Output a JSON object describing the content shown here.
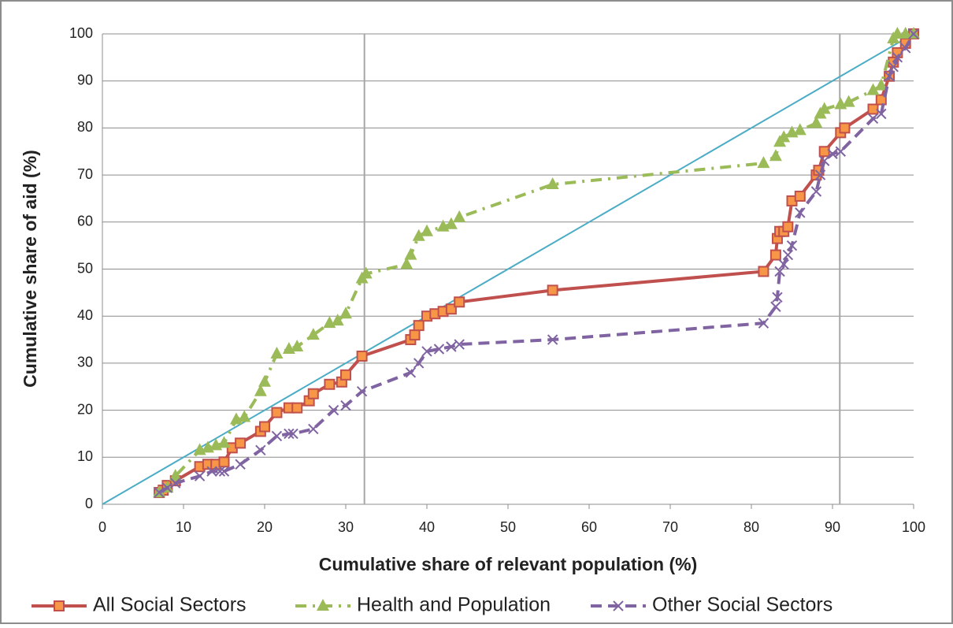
{
  "chart_data": {
    "type": "scatter-line",
    "xlabel": "Cumulative share of relevant population (%)",
    "ylabel": "Cumulative share of aid (%)",
    "xlim": [
      0,
      100
    ],
    "ylim": [
      0,
      100
    ],
    "xticks": [
      0,
      10,
      20,
      30,
      40,
      50,
      60,
      70,
      80,
      90,
      100
    ],
    "yticks": [
      0,
      10,
      20,
      30,
      40,
      50,
      60,
      70,
      80,
      90,
      100
    ],
    "grid": true,
    "legend": "bottom",
    "reference_x": [
      32.3,
      90.9
    ],
    "diagonal": {
      "color": "#4bacc6",
      "x": [
        0,
        100
      ],
      "values": [
        0,
        100
      ]
    },
    "series": [
      {
        "name": "All Social Sectors",
        "color": "#c0504d",
        "marker": "square",
        "dash": "solid",
        "x": [
          7,
          7.5,
          8,
          9,
          12,
          13,
          14,
          15,
          16,
          17,
          19.5,
          20,
          21.5,
          23,
          24,
          25.5,
          26,
          28,
          29.5,
          30,
          32,
          38,
          38.5,
          39,
          40,
          41,
          42,
          43,
          44,
          55.5,
          81.5,
          83,
          83.2,
          83.5,
          84,
          84.5,
          85,
          86,
          88,
          88.3,
          89,
          91,
          91.5,
          95,
          96,
          97,
          97.5,
          98,
          99,
          100
        ],
        "values": [
          2.5,
          3,
          4,
          5,
          8,
          8.5,
          8.5,
          9,
          12,
          13,
          15.5,
          16.5,
          19.5,
          20.5,
          20.5,
          22,
          23.5,
          25.5,
          26,
          27.5,
          31.5,
          35,
          36,
          38,
          40,
          40.5,
          41,
          41.5,
          43,
          45.5,
          49.5,
          53,
          56.5,
          58,
          58,
          59,
          64.5,
          65.5,
          70,
          71,
          75,
          79,
          80,
          84,
          86,
          91,
          94,
          96,
          98,
          100
        ]
      },
      {
        "name": "Health and Population",
        "color": "#9bbb59",
        "marker": "triangle",
        "dash": "dashdot",
        "x": [
          7,
          8,
          9,
          12,
          13,
          14,
          15,
          16.5,
          17.5,
          19.5,
          20,
          21.5,
          23,
          24,
          26,
          28,
          29,
          30,
          32,
          32.5,
          37.5,
          38,
          39,
          40,
          42,
          43,
          44,
          55.5,
          81.5,
          83,
          83.5,
          84,
          85,
          86,
          88,
          88.5,
          89,
          91,
          92,
          95,
          96,
          97.5,
          98,
          99,
          100
        ],
        "values": [
          2.5,
          3.5,
          6,
          11.5,
          12,
          12.5,
          13,
          18,
          18.5,
          24,
          26,
          32,
          33,
          33.5,
          36,
          38.5,
          39,
          40.5,
          48,
          49,
          51,
          53,
          57,
          58,
          59,
          59.5,
          61,
          68,
          72.5,
          74,
          77,
          78,
          79,
          79.5,
          81,
          83,
          84,
          85,
          85.5,
          88,
          89,
          99,
          100,
          100,
          100
        ]
      },
      {
        "name": "Other Social Sectors",
        "color": "#8064a2",
        "marker": "x",
        "dash": "dashed",
        "x": [
          7,
          8,
          9,
          12,
          13.5,
          14.5,
          15,
          17,
          19.5,
          21.5,
          23,
          23.5,
          26,
          28.5,
          30,
          32,
          38,
          39,
          40,
          41.5,
          43,
          44,
          55.5,
          81.5,
          83,
          83.2,
          83.5,
          84,
          84.5,
          85,
          86,
          88,
          88.5,
          89,
          90,
          91,
          95,
          96,
          97,
          97.5,
          98,
          99,
          100
        ],
        "values": [
          2.5,
          3.5,
          4.5,
          6,
          7,
          7,
          7,
          8.5,
          11.5,
          14.5,
          15,
          15,
          16,
          20,
          21,
          24,
          28,
          30,
          32.5,
          33,
          33.5,
          34,
          35,
          38.5,
          42,
          44,
          49.5,
          51,
          53,
          55,
          62,
          66.5,
          70,
          73,
          74.5,
          75,
          82,
          83,
          91,
          93,
          95,
          97,
          100
        ]
      }
    ]
  }
}
